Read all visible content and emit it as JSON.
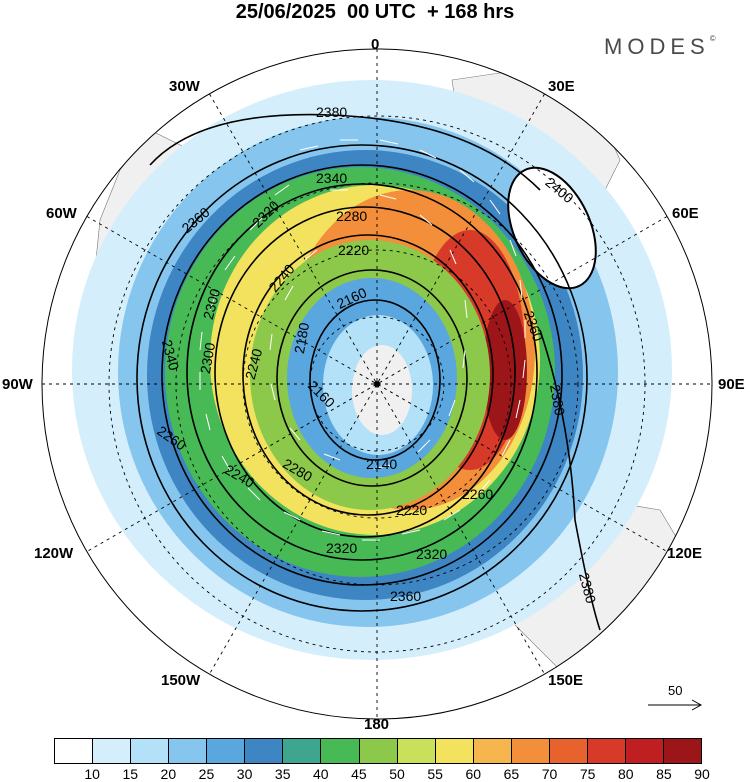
{
  "title": "25/06/2025  00 UTC  + 168 hrs",
  "brand": "MODES",
  "brand_mark": "©",
  "longitude_labels": {
    "lon_0": "0",
    "lon_30e": "30E",
    "lon_60e": "60E",
    "lon_90e": "90E",
    "lon_120e": "120E",
    "lon_150e": "150E",
    "lon_180": "180",
    "lon_150w": "150W",
    "lon_120w": "120W",
    "lon_90w": "90W",
    "lon_60w": "60W",
    "lon_30w": "30W"
  },
  "contours": {
    "c2380_top": "2380",
    "c2360_w": "2360",
    "c2340_top": "2340",
    "c2320_top": "2320",
    "c2280_top": "2280",
    "c2220_top": "2220",
    "c2300_w": "2300",
    "c2240_w": "2240",
    "c2160": "2160",
    "c2180": "2180",
    "c2340_w": "2340",
    "c2300_w2": "2300",
    "c2240_w2": "2240",
    "c2160_s": "2160",
    "c2140": "2140",
    "c2280_s": "2280",
    "c2240_s": "2240",
    "c2260_s": "2260",
    "c2220_s": "2220",
    "c2260_se": "2260",
    "c2320_s": "2320",
    "c2320_s2": "2320",
    "c2360_s": "2360",
    "c2360_e": "2360",
    "c2380_e": "2380",
    "c2400": "2400",
    "c2380_se": "2380"
  },
  "reference_vector": "50",
  "colorbar": {
    "colors": [
      "#ffffff",
      "#d4effb",
      "#b3e1f7",
      "#86c6ee",
      "#5aa6de",
      "#3e85c3",
      "#3ea58f",
      "#47b955",
      "#8cc94a",
      "#c9e05a",
      "#f3e25e",
      "#f7b64d",
      "#f38e3a",
      "#e8622d",
      "#d83a2a",
      "#c01f22",
      "#9c1519"
    ],
    "ticks": [
      "10",
      "15",
      "20",
      "25",
      "30",
      "35",
      "40",
      "45",
      "50",
      "55",
      "60",
      "65",
      "70",
      "75",
      "80",
      "85",
      "90"
    ]
  }
}
